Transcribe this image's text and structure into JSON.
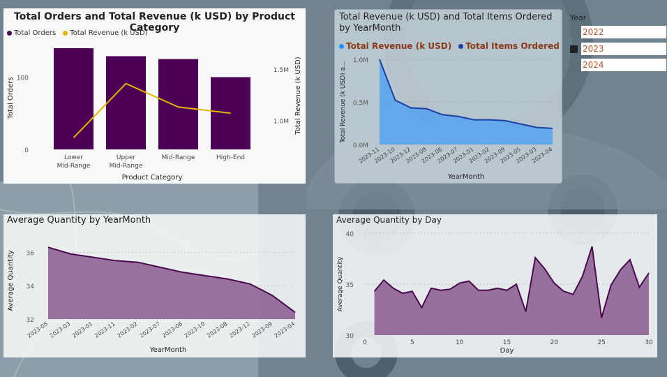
{
  "colors": {
    "purple": "#4b0055",
    "gold": "#e6b400",
    "blue_light": "#1e90ff",
    "blue_dark": "#1b3fa8",
    "mauve_fill": "#8a5b8f",
    "mauve_line": "#4a0a50",
    "title_orange": "#8b3a1a"
  },
  "slicer": {
    "title": "Year",
    "items": [
      {
        "label": "2022",
        "checked": false
      },
      {
        "label": "2023",
        "checked": true
      },
      {
        "label": "2024",
        "checked": false
      }
    ]
  },
  "chart_data": [
    {
      "id": "orders_revenue_by_category",
      "type": "bar",
      "title": "Total Orders and Total Revenue (k USD) by Product Category",
      "xlabel": "Product Category",
      "ylabel": "Total Orders",
      "y2label": "Total Revenue (k USD)",
      "categories": [
        [
          "Lower",
          "Mid-Range"
        ],
        [
          "Upper",
          "Mid-Range"
        ],
        [
          "Mid-Range"
        ],
        [
          "High-End"
        ]
      ],
      "y_ticks": [
        0,
        100
      ],
      "y2_ticks": [
        "1.0M",
        "1.5M"
      ],
      "y2_tick_values": [
        1000000,
        1500000
      ],
      "ylim": [
        0,
        142
      ],
      "y2lim": [
        715000,
        1720000
      ],
      "legend": [
        "Total Orders",
        "Total Revenue (k USD)"
      ],
      "series": [
        {
          "name": "Total Orders",
          "kind": "bar",
          "values": [
            140,
            129,
            125,
            100
          ]
        },
        {
          "name": "Total Revenue (k USD)",
          "kind": "line",
          "values": [
            830000,
            1360000,
            1130000,
            1070000
          ]
        }
      ]
    },
    {
      "id": "revenue_items_by_yearmonth",
      "type": "area",
      "title": "Total Revenue (k USD) and Total Items Ordered by YearMonth",
      "xlabel": "YearMonth",
      "ylabel": "Total Revenue (k USD) a...",
      "categories": [
        "2023-11",
        "2023-10",
        "2023-12",
        "2023-08",
        "2023-06",
        "2023-07",
        "2023-01",
        "2023-02",
        "2023-09",
        "2023-05",
        "2023-03",
        "2023-04"
      ],
      "y_ticks": [
        "0.0M",
        "0.5M",
        "1.0M"
      ],
      "y_tick_values": [
        0,
        500000,
        1000000
      ],
      "ylim": [
        0,
        1000000
      ],
      "legend": [
        "Total Revenue (k USD)",
        "Total Items Ordered"
      ],
      "series": [
        {
          "name": "Total Revenue (k USD)",
          "values": [
            1000000,
            520000,
            430000,
            420000,
            350000,
            330000,
            290000,
            290000,
            280000,
            240000,
            200000,
            190000
          ]
        },
        {
          "name": "Total Items Ordered",
          "values": [
            1000000,
            520000,
            430000,
            420000,
            350000,
            330000,
            290000,
            290000,
            280000,
            240000,
            200000,
            190000
          ]
        }
      ]
    },
    {
      "id": "avg_quantity_by_yearmonth",
      "type": "area",
      "title": "Average Quantity by YearMonth",
      "xlabel": "YearMonth",
      "ylabel": "Average Quantity",
      "categories": [
        "2023-05",
        "2023-03",
        "2023-01",
        "2023-11",
        "2023-02",
        "2023-07",
        "2023-06",
        "2023-10",
        "2023-08",
        "2023-12",
        "2023-09",
        "2023-04"
      ],
      "y_ticks": [
        32,
        34,
        36
      ],
      "ylim": [
        32,
        36.6
      ],
      "series": [
        {
          "name": "Average Quantity",
          "values": [
            36.3,
            35.9,
            35.7,
            35.5,
            35.4,
            35.1,
            34.8,
            34.6,
            34.4,
            34.1,
            33.4,
            32.4
          ]
        }
      ]
    },
    {
      "id": "avg_quantity_by_day",
      "type": "area",
      "title": "Average Quantity by Day",
      "xlabel": "Day",
      "ylabel": "Average Quantity",
      "x_ticks": [
        0,
        5,
        10,
        15,
        20,
        25,
        30
      ],
      "xlim": [
        0,
        30
      ],
      "y_ticks": [
        30,
        35,
        40
      ],
      "ylim": [
        30,
        40
      ],
      "x": [
        1,
        2,
        3,
        4,
        5,
        6,
        7,
        8,
        9,
        10,
        11,
        12,
        13,
        14,
        15,
        16,
        17,
        18,
        19,
        20,
        21,
        22,
        23,
        24,
        25,
        26,
        27,
        28,
        29,
        30
      ],
      "series": [
        {
          "name": "Average Quantity",
          "values": [
            34.3,
            35.4,
            34.6,
            34.1,
            34.3,
            32.7,
            34.6,
            34.4,
            34.5,
            35.1,
            35.3,
            34.4,
            34.4,
            34.6,
            34.4,
            35.0,
            32.3,
            37.6,
            36.5,
            35.1,
            34.3,
            34.0,
            35.8,
            38.7,
            31.7,
            34.9,
            36.4,
            37.4,
            34.7,
            36.1
          ]
        }
      ]
    }
  ]
}
